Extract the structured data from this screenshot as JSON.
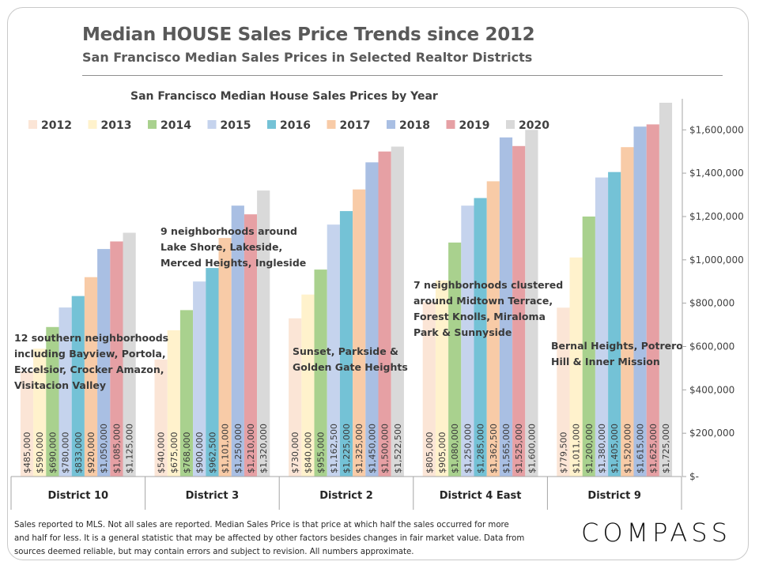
{
  "header": {
    "title": "Median HOUSE Sales Price Trends since 2012",
    "subtitle": "San Francisco Median Sales Prices in Selected Realtor Districts"
  },
  "footnote": {
    "lines": [
      "Sales reported to MLS. Not all sales are reported. Median Sales Price is that price at which half the sales occurred for more",
      "and half for less. It is a general statistic that may be affected by other factors besides changes in fair market value. Data from",
      "sources deemed reliable, but may contain errors and subject to revision.  All numbers approximate."
    ]
  },
  "brand": {
    "logo_text": "COMPASS"
  },
  "chart_data": {
    "type": "bar",
    "title": "San Francisco Median House Sales Prices by Year",
    "categories": [
      "District 10",
      "District 3",
      "District 2",
      "District 4 East",
      "District 9"
    ],
    "series": [
      {
        "name": "2012",
        "color": "#fbe5d6",
        "values": [
          485000,
          540000,
          730000,
          805000,
          779500
        ],
        "labels": [
          "$485,000",
          "$540,000",
          "$730,000",
          "$805,000",
          "$779,500"
        ]
      },
      {
        "name": "2013",
        "color": "#fff2cc",
        "values": [
          590000,
          675000,
          840000,
          905000,
          1011000
        ],
        "labels": [
          "$590,000",
          "$675,000",
          "$840,000",
          "$905,000",
          "$1,011,000"
        ]
      },
      {
        "name": "2014",
        "color": "#a9d18e",
        "values": [
          690000,
          768000,
          955000,
          1080000,
          1200000
        ],
        "labels": [
          "$690,000",
          "$768,000",
          "$955,000",
          "$1,080,000",
          "$1,200,000"
        ]
      },
      {
        "name": "2015",
        "color": "#c5d3ed",
        "values": [
          780000,
          900000,
          1162500,
          1250000,
          1380000
        ],
        "labels": [
          "$780,000",
          "$900,000",
          "$1,162,500",
          "$1,250,000",
          "$1,380,000"
        ]
      },
      {
        "name": "2016",
        "color": "#74c2d6",
        "values": [
          833000,
          962500,
          1225000,
          1285000,
          1405000
        ],
        "labels": [
          "$833,000",
          "$962,500",
          "$1,225,000",
          "$1,285,000",
          "$1,405,000"
        ]
      },
      {
        "name": "2017",
        "color": "#f8cba7",
        "values": [
          920000,
          1101000,
          1325000,
          1362500,
          1520000
        ],
        "labels": [
          "$920,000",
          "$1,101,000",
          "$1,325,000",
          "$1,362,500",
          "$1,520,000"
        ]
      },
      {
        "name": "2018",
        "color": "#a9bfe3",
        "values": [
          1050000,
          1250000,
          1450000,
          1565000,
          1615000
        ],
        "labels": [
          "$1,050,000",
          "$1,250,000",
          "$1,450,000",
          "$1,565,000",
          "$1,615,000"
        ]
      },
      {
        "name": "2019",
        "color": "#e6a0a4",
        "values": [
          1085000,
          1210000,
          1500000,
          1525000,
          1625000
        ],
        "labels": [
          "$1,085,000",
          "$1,210,000",
          "$1,500,000",
          "$1,525,000",
          "$1,625,000"
        ]
      },
      {
        "name": "2020",
        "color": "#d9d9d9",
        "values": [
          1125000,
          1320000,
          1522500,
          1600000,
          1725000
        ],
        "labels": [
          "$1,125,000",
          "$1,320,000",
          "$1,522,500",
          "$1,600,000",
          "$1,725,000"
        ]
      }
    ],
    "yticks": [
      0,
      200000,
      400000,
      600000,
      800000,
      1000000,
      1200000,
      1400000,
      1600000
    ],
    "ytick_labels": [
      "$-",
      "$200,000",
      "$400,000",
      "$600,000",
      "$800,000",
      "$1,000,000",
      "$1,200,000",
      "$1,400,000",
      "$1,600,000"
    ],
    "ylim": [
      0,
      1725000
    ],
    "y_axis_position": "right",
    "grid": false,
    "legend_position": "top",
    "annotations": [
      {
        "category": "District 10",
        "lines": [
          "12 southern neighborhoods",
          "including Bayview, Portola,",
          "Excelsior, Crocker Amazon,",
          "Visitacion Valley"
        ]
      },
      {
        "category": "District 3",
        "lines": [
          "9 neighborhoods around",
          "Lake Shore, Lakeside,",
          "Merced Heights, Ingleside"
        ]
      },
      {
        "category": "District 2",
        "lines": [
          "Sunset, Parkside &",
          "Golden Gate Heights"
        ]
      },
      {
        "category": "District 4 East",
        "lines": [
          "7 neighborhoods clustered",
          "around Midtown Terrace,",
          "Forest Knolls, Miraloma",
          "Park & Sunnyside"
        ]
      },
      {
        "category": "District 9",
        "lines": [
          "Bernal Heights, Potrero",
          "Hill & Inner Mission"
        ]
      }
    ]
  }
}
